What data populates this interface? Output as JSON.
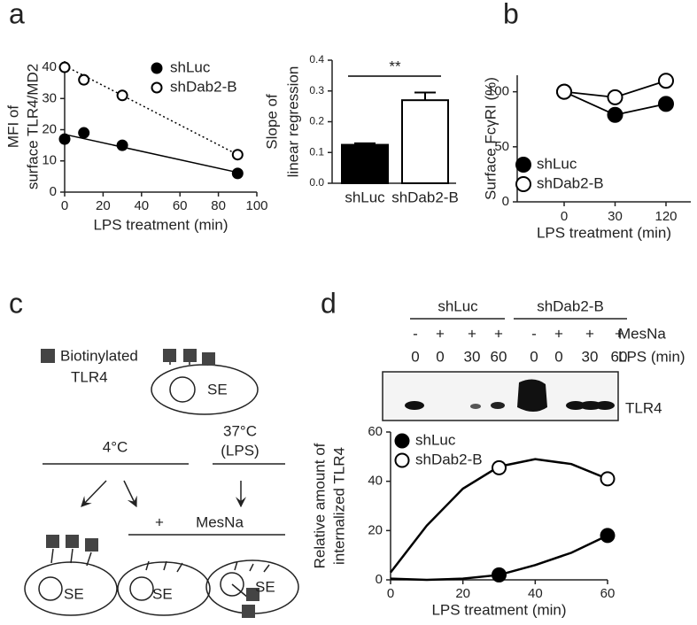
{
  "panel_labels": [
    "a",
    "b",
    "c",
    "d"
  ],
  "chart_data": [
    {
      "type": "scatter",
      "xlabel": "LPS treatment (min)",
      "ylabel": [
        "MFI of",
        "surface TLR4/MD2"
      ],
      "xlim": [
        0,
        100
      ],
      "xticks": [
        0,
        20,
        40,
        60,
        80,
        100
      ],
      "ylim": [
        0,
        42
      ],
      "yticks": [
        0,
        10,
        20,
        30,
        40
      ],
      "series": [
        {
          "name": "shLuc",
          "color": "#000000",
          "marker": "filled",
          "line_style": "solid",
          "x": [
            0,
            10,
            30,
            90
          ],
          "values": [
            17,
            19,
            15,
            6
          ],
          "fit": {
            "x": [
              0,
              90
            ],
            "values": [
              18.5,
              6.3
            ]
          }
        },
        {
          "name": "shDab2-B",
          "color": "#000000",
          "marker": "open",
          "line_style": "dotted",
          "x": [
            0,
            10,
            30,
            90
          ],
          "values": [
            40,
            36,
            31,
            12
          ],
          "fit": {
            "x": [
              0,
              90
            ],
            "values": [
              40.5,
              12
            ]
          }
        }
      ]
    },
    {
      "type": "bar",
      "ylabel": [
        "Slope of",
        "linear regression"
      ],
      "categories": [
        "shLuc",
        "shDab2-B"
      ],
      "values": [
        0.125,
        0.27
      ],
      "errors": [
        0.005,
        0.025
      ],
      "colors": [
        "#000000",
        "#ffffff"
      ],
      "ylim": [
        0,
        0.4
      ],
      "yticks": [
        {
          "value": 0,
          "label": "0.0"
        },
        0.1,
        0.2,
        0.3,
        0.4
      ],
      "annotation": "**"
    },
    {
      "type": "line",
      "xlabel": "LPS treatment (min)",
      "ylabel": "Surface FcγRI (%)",
      "categories": [
        "0",
        "30",
        "120"
      ],
      "ylim": [
        0,
        115
      ],
      "yticks": [
        0,
        50,
        100
      ],
      "legend": "lower left",
      "series": [
        {
          "name": "shLuc",
          "color": "#000000",
          "marker": "filled",
          "values": [
            100,
            79,
            89
          ]
        },
        {
          "name": "shDab2-B",
          "color": "#000000",
          "marker": "open",
          "values": [
            100,
            95,
            110
          ]
        }
      ]
    },
    {
      "type": "scatter",
      "xlabel": "LPS treatment (min)",
      "ylabel": [
        "Relative amount of",
        "internalized TLR4"
      ],
      "xlim": [
        0,
        60
      ],
      "xticks": [
        0,
        20,
        40,
        60
      ],
      "ylim": [
        0,
        60
      ],
      "yticks": [
        0,
        20,
        40,
        60
      ],
      "series": [
        {
          "name": "shLuc",
          "color": "#000000",
          "marker": "filled",
          "line_style": "solid",
          "x": [
            30,
            60
          ],
          "values": [
            2,
            18
          ],
          "fit": {
            "x": [
              0,
              10,
              20,
              30,
              40,
              50,
              60
            ],
            "values": [
              0.5,
              0,
              0.5,
              2,
              6,
              11,
              18
            ]
          }
        },
        {
          "name": "shDab2-B",
          "color": "#000000",
          "marker": "open",
          "line_style": "solid",
          "x": [
            30,
            60
          ],
          "values": [
            45.5,
            41
          ],
          "fit": {
            "x": [
              0,
              10,
              20,
              30,
              40,
              50,
              60
            ],
            "values": [
              3,
              22,
              37,
              46,
              49,
              47,
              41
            ]
          }
        }
      ]
    }
  ],
  "diagram": {
    "legend": [
      "Biotinylated",
      "TLR4"
    ],
    "compartment": "SE",
    "cold": "4°C",
    "warm": [
      "37°C",
      "(LPS)"
    ],
    "plus": "+",
    "reagent": "MesNa"
  },
  "blot": {
    "groups": [
      "shLuc",
      "shDab2-B"
    ],
    "mesna_label": "MesNa",
    "mesna": [
      "-",
      "+",
      "+",
      "+",
      "-",
      "+",
      "+",
      "+"
    ],
    "lps_label": "LPS (min)",
    "lps": [
      "0",
      "0",
      "30",
      "60",
      "0",
      "0",
      "30",
      "60"
    ],
    "band_label": "TLR4"
  }
}
